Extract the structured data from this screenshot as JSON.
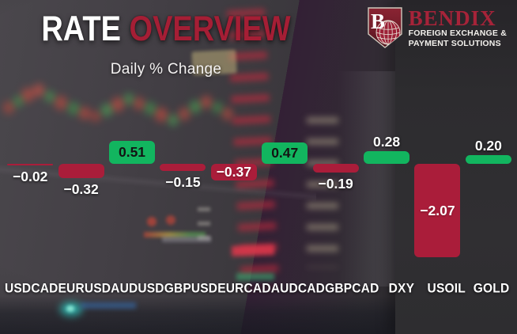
{
  "header": {
    "title_primary": "RATE",
    "title_secondary": "OVERVIEW",
    "subtitle": "Daily % Change"
  },
  "logo": {
    "monogram": "B",
    "name": "BENDIX",
    "tagline_line1": "FOREIGN EXCHANGE &",
    "tagline_line2": "PAYMENT SOLUTIONS"
  },
  "colors": {
    "positive_bar": "#12b55f",
    "negative_bar": "#aa1d3a",
    "title_accent": "#a51e35",
    "logo_red": "#a62339",
    "label_text": "#ffffff",
    "inside_positive_text": "#131313"
  },
  "chart_data": {
    "type": "bar",
    "title": "RATE OVERVIEW",
    "subtitle": "Daily % Change",
    "categories": [
      "USDCAD",
      "EURUSD",
      "AUDUSD",
      "GBPUSD",
      "EURCAD",
      "AUDCAD",
      "GBPCAD",
      "DXY",
      "USOIL",
      "GOLD"
    ],
    "values": [
      -0.02,
      -0.32,
      0.51,
      -0.15,
      -0.37,
      0.47,
      -0.19,
      0.28,
      -2.07,
      0.2
    ],
    "xlabel": "",
    "ylabel": "",
    "ylim": [
      -2.2,
      0.8
    ],
    "grid": false,
    "legend": false,
    "baseline": 0,
    "value_labels_shown": true,
    "value_label_decimals": 2,
    "positive_color": "#12b55f",
    "negative_color": "#aa1d3a"
  }
}
